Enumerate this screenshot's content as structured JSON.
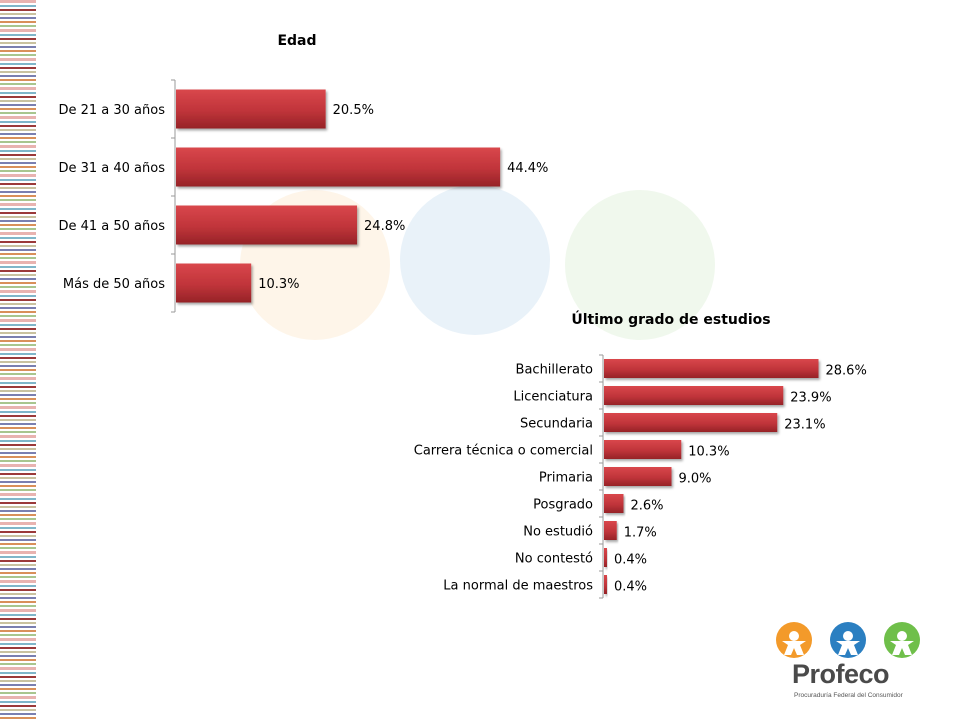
{
  "chart_data": [
    {
      "type": "bar",
      "orientation": "horizontal",
      "title": "Edad",
      "categories": [
        "De 21 a 30 años",
        "De 31 a 40 años",
        "De 41 a 50 años",
        "Más de 50 años"
      ],
      "values": [
        20.5,
        44.4,
        24.8,
        10.3
      ],
      "value_labels": [
        "20.5%",
        "44.4%",
        "24.8%",
        "10.3%"
      ],
      "unit": "%",
      "color": "#c0343a"
    },
    {
      "type": "bar",
      "orientation": "horizontal",
      "title": "Último grado de estudios",
      "categories": [
        "Bachillerato",
        "Licenciatura",
        "Secundaria",
        "Carrera técnica o comercial",
        "Primaria",
        "Posgrado",
        "No estudió",
        "No contestó",
        "La normal de maestros"
      ],
      "values": [
        28.6,
        23.9,
        23.1,
        10.3,
        9.0,
        2.6,
        1.7,
        0.4,
        0.4
      ],
      "value_labels": [
        "28.6%",
        "23.9%",
        "23.1%",
        "10.3%",
        "9.0%",
        "2.6%",
        "1.7%",
        "0.4%",
        "0.4%"
      ],
      "unit": "%",
      "color": "#c0343a"
    }
  ],
  "logo": {
    "name": "Profeco",
    "subtitle": "Procuraduría Federal del Consumidor",
    "colors": [
      "#f39a2a",
      "#2b7fc1",
      "#6fbf4a"
    ]
  }
}
